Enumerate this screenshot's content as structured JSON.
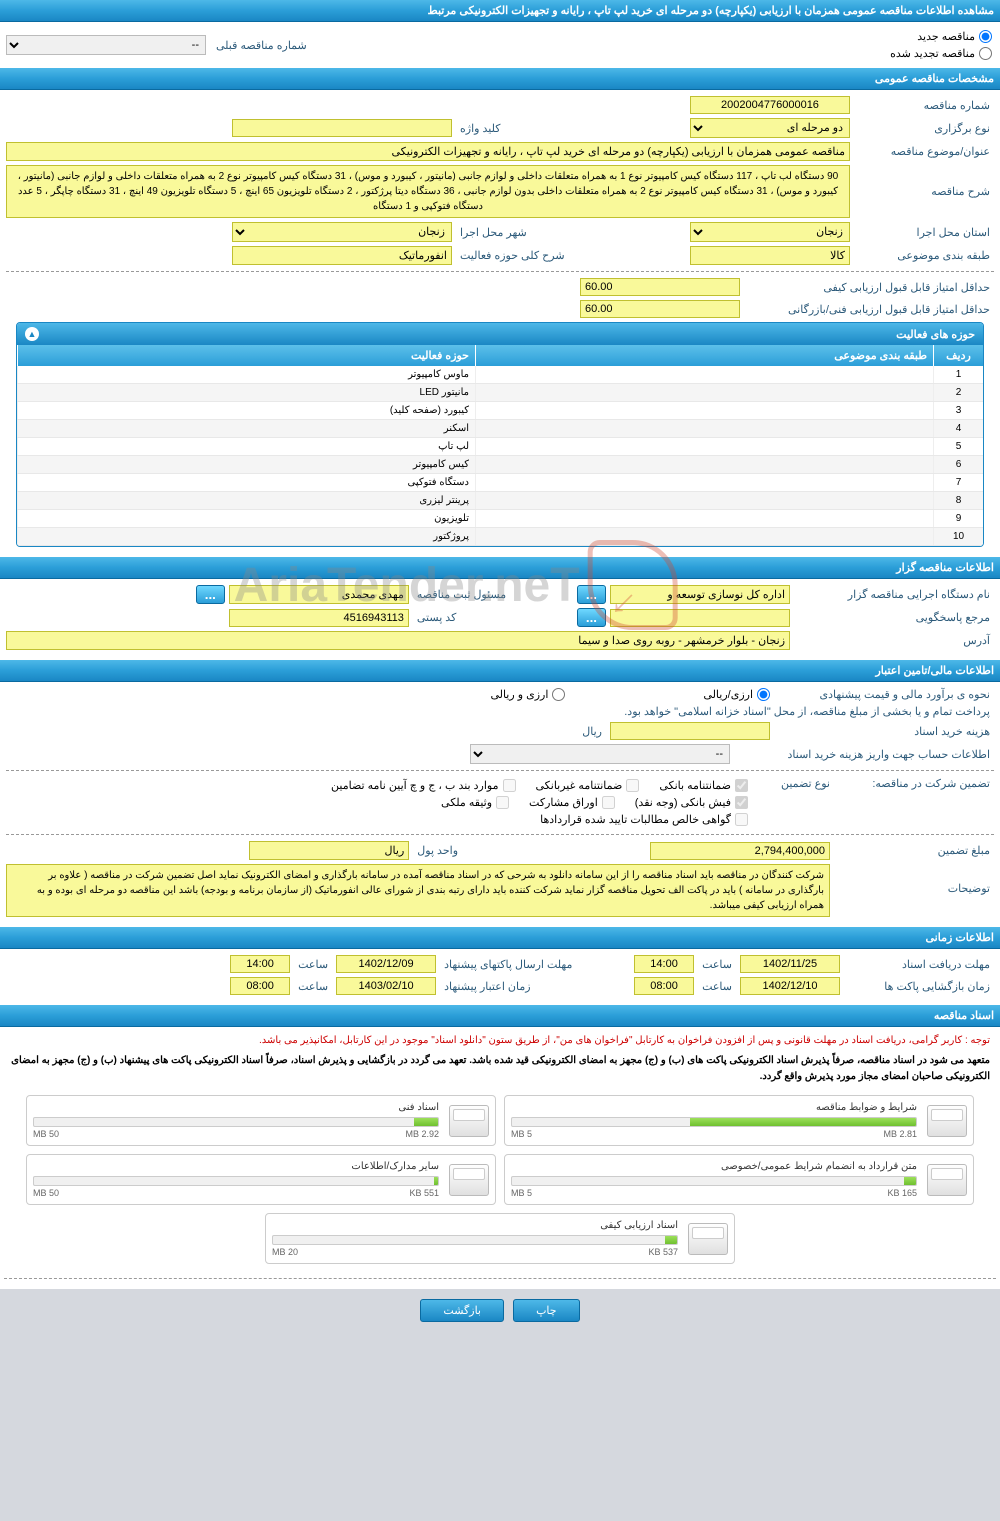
{
  "main_title": "مشاهده اطلاعات مناقصه عمومی همزمان با ارزیابی (یکپارچه) دو مرحله ای خرید لپ تاپ ، رایانه و تجهیزات الکترونیکی مرتبط",
  "tender_status": {
    "new_label": "مناقصه جدید",
    "renewed_label": "مناقصه تجدید شده",
    "prev_number_label": "شماره مناقصه قبلی",
    "prev_number_value": "--"
  },
  "section_general": {
    "title": "مشخصات مناقصه عمومی",
    "tender_number_label": "شماره مناقصه",
    "tender_number": "2002004776000016",
    "holding_type_label": "نوع برگزاری",
    "holding_type": "دو مرحله ای",
    "keyword_label": "کلید واژه",
    "keyword": "",
    "subject_label": "عنوان/موضوع مناقصه",
    "subject": "مناقصه عمومی همزمان با ارزیابی (یکپارچه) دو مرحله ای خرید لپ تاپ ، رایانه و تجهیزات الکترونیکی",
    "description_label": "شرح مناقصه",
    "description": "90  دستگاه  لب تاپ  ، 117 دستگاه کیس کامپیوتر نوع 1 به همراه متعلقات داخلی و  لوازم جانبی (مانیتور ، کیبورد و موس)  ، 31 دستگاه کیس کامپیوتر نوع 2 به همراه متعلقات داخلی و  لوازم جانبی (مانیتور ، کیبورد و موس)  ، 31 دستگاه کیس کامپیوتر نوع 2 به همراه متعلقات داخلی بدون لوازم جانبی ، 36 دستگاه دیتا پرژکتور ، 2 دستگاه تلویزیون 65 اینچ ، 5 دستگاه تلویزیون 49 اینچ ، 31 دستگاه چاپگر ، 5 عدد دستگاه فتوکپی و 1 دستگاه",
    "province_exec_label": "استان محل اجرا",
    "province_exec": "زنجان",
    "city_exec_label": "شهر محل اجرا",
    "city_exec": "زنجان",
    "subject_class_label": "طبقه بندی موضوعی",
    "subject_class": "کالا",
    "activity_area_label": "شرح کلی حوزه فعالیت",
    "activity_area": "انفورماتیک",
    "min_quality_score_label": "حداقل امتیاز قابل قبول ارزیابی کیفی",
    "min_quality_score": "60.00",
    "min_tech_score_label": "حداقل امتیاز قابل قبول ارزیابی فنی/بازرگانی",
    "min_tech_score": "60.00"
  },
  "activity_table": {
    "title": "حوزه های فعالیت",
    "col_idx": "ردیف",
    "col_cat": "طبقه بندی موضوعی",
    "col_act": "حوزه فعالیت",
    "rows": [
      {
        "idx": "1",
        "cat": "",
        "act": "ماوس کامپیوتر"
      },
      {
        "idx": "2",
        "cat": "",
        "act": "مانیتور LED"
      },
      {
        "idx": "3",
        "cat": "",
        "act": "کیبورد (صفحه کلید)"
      },
      {
        "idx": "4",
        "cat": "",
        "act": "اسکنر"
      },
      {
        "idx": "5",
        "cat": "",
        "act": "لپ تاپ"
      },
      {
        "idx": "6",
        "cat": "",
        "act": "کیس کامپیوتر"
      },
      {
        "idx": "7",
        "cat": "",
        "act": "دستگاه فتوکپی"
      },
      {
        "idx": "8",
        "cat": "",
        "act": "پرینتر لیزری"
      },
      {
        "idx": "9",
        "cat": "",
        "act": "تلویزیون"
      },
      {
        "idx": "10",
        "cat": "",
        "act": "پروژکتور"
      }
    ]
  },
  "section_owner": {
    "title": "اطلاعات مناقصه گزار",
    "exec_org_label": "نام دستگاه اجرایی مناقصه گزار",
    "exec_org": "اداره کل نوسازی  توسعه و",
    "registrar_label": "مسئول ثبت مناقصه",
    "registrar": "مهدی محمدی",
    "contact_label": "مرجع پاسخگویی",
    "contact": "",
    "postal_label": "کد پستی",
    "postal": "4516943113",
    "address_label": "آدرس",
    "address": "زنجان - بلوار خرمشهر - روبه روی صدا و سیما",
    "more_btn": "..."
  },
  "section_financial": {
    "title": "اطلاعات مالی/تامین اعتبار",
    "estimate_label": "نحوه ی برآورد مالی و قیمت پیشنهادی",
    "currency_fx": "ارزی/ریالی",
    "currency_both": "ارزی و ریالی",
    "payment_note": "پرداخت تمام و یا بخشی از مبلغ مناقصه، از محل \"اسناد خزانه اسلامی\" خواهد بود.",
    "doc_cost_label": "هزینه خرید اسناد",
    "doc_cost_unit": "ریال",
    "doc_cost": "",
    "deposit_account_label": "اطلاعات حساب جهت واریز هزینه خرید اسناد",
    "deposit_account": "--",
    "guarantee_label": "تضمین شرکت در مناقصه:",
    "guarantee_type_label": "نوع تضمین",
    "g1": "ضمانتنامه بانکی",
    "g2": "ضمانتنامه غیربانکی",
    "g3": "موارد بند ب ، ج و چ آیین نامه تضامین",
    "g4": "فیش بانکی (وجه نقد)",
    "g5": "اوراق مشارکت",
    "g6": "وثیقه ملکی",
    "g7": "گواهی خالص مطالبات تایید شده قراردادها",
    "guarantee_amount_label": "مبلغ تضمین",
    "guarantee_amount": "2,794,400,000",
    "money_unit_label": "واحد پول",
    "money_unit": "ریال",
    "notes_label": "توضیحات",
    "notes": "شرکت کنندگان در مناقصه باید اسناد مناقصه را از این سامانه دانلود به شرحی که در اسناد مناقصه آمده در سامانه بارگذاری و امضای الکترونیک نماید اصل تضمین شرکت در مناقصه ( علاوه بر بارگذاری در سامانه ) باید در پاکت الف تحویل مناقصه گزار نماید شرکت کننده باید دارای رتبه بندی از شورای عالی انفورماتیک (از سازمان برنامه و بودجه) باشد این مناقصه دو مرحله ای بوده و به همراه ارزیابی کیفی میباشد."
  },
  "section_timing": {
    "title": "اطلاعات زمانی",
    "receive_deadline_label": "مهلت دریافت اسناد",
    "receive_date": "1402/11/25",
    "receive_time_label": "ساعت",
    "receive_time": "14:00",
    "send_deadline_label": "مهلت ارسال پاکتهای پیشنهاد",
    "send_date": "1402/12/09",
    "send_time_label": "ساعت",
    "send_time": "14:00",
    "open_label": "زمان بازگشایی پاکت ها",
    "open_date": "1402/12/10",
    "open_time_label": "ساعت",
    "open_time": "08:00",
    "validity_label": "زمان اعتبار پیشنهاد",
    "validity_date": "1403/02/10",
    "validity_time_label": "ساعت",
    "validity_time": "08:00"
  },
  "section_docs": {
    "title": "اسناد مناقصه",
    "note1": "توجه : کاربر گرامی، دریافت اسناد در مهلت قانونی و پس از افزودن فراخوان به کارتابل \"فراخوان های من\"، از طریق ستون \"دانلود اسناد\" موجود در این کارتابل، امکانپذیر می باشد.",
    "note2": "متعهد می شود در اسناد مناقصه، صرفاً پذیرش اسناد الکترونیکی پاکت های (ب) و (ج) مجهز به امضای الکترونیکی قید شده باشد. تعهد می گردد در بازگشایی و پذیرش اسناد، صرفاً اسناد الکترونیکی پاکت های پیشنهاد (ب) و (ج) مجهز به امضای الکترونیکی صاحبان امضای مجاز مورد پذیرش واقع گردد.",
    "cards": [
      {
        "title": "شرایط و ضوابط مناقصه",
        "used": "2.81 MB",
        "total": "5 MB",
        "pct": 56
      },
      {
        "title": "اسناد فنی",
        "used": "2.92 MB",
        "total": "50 MB",
        "pct": 6
      },
      {
        "title": "متن قرارداد به انضمام شرایط عمومی/خصوصی",
        "used": "165 KB",
        "total": "5 MB",
        "pct": 3
      },
      {
        "title": "سایر مدارک/اطلاعات",
        "used": "551 KB",
        "total": "50 MB",
        "pct": 1
      },
      {
        "title": "اسناد ارزیابی کیفی",
        "used": "537 KB",
        "total": "20 MB",
        "pct": 3
      }
    ]
  },
  "footer": {
    "print": "چاپ",
    "back": "بازگشت"
  },
  "colors": {
    "header_bg": "#1a87c4",
    "field_bg": "#f9f99a",
    "page_bg": "#d5d8de"
  }
}
